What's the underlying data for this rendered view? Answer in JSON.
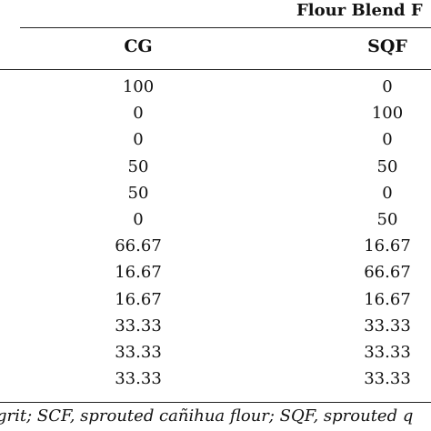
{
  "table": {
    "group_header": "Flour Blend F",
    "columns": [
      "CG",
      "SQF"
    ],
    "rows": [
      {
        "cg": "100",
        "sqf": "0"
      },
      {
        "cg": "0",
        "sqf": "100"
      },
      {
        "cg": "0",
        "sqf": "0"
      },
      {
        "cg": "50",
        "sqf": "50"
      },
      {
        "cg": "50",
        "sqf": "0"
      },
      {
        "cg": "0",
        "sqf": "50"
      },
      {
        "cg": "66.67",
        "sqf": "16.67"
      },
      {
        "cg": "16.67",
        "sqf": "66.67"
      },
      {
        "cg": "16.67",
        "sqf": "16.67"
      },
      {
        "cg": "33.33",
        "sqf": "33.33"
      },
      {
        "cg": "33.33",
        "sqf": "33.33"
      },
      {
        "cg": "33.33",
        "sqf": "33.33"
      }
    ],
    "footnote": "grit; SCF, sprouted cañihua flour; SQF, sprouted q"
  }
}
